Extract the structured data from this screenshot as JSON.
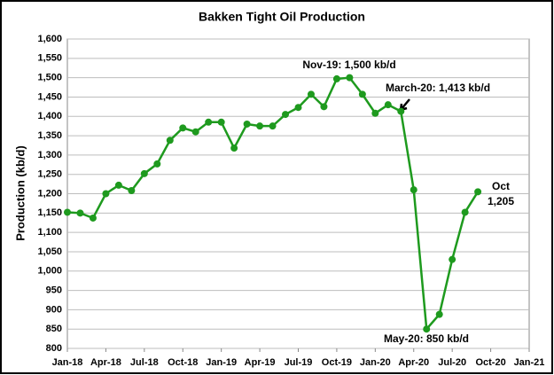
{
  "chart_data": {
    "type": "line",
    "title": "Bakken Tight Oil Production",
    "y_label": "Production (kb/d)",
    "categories": [
      "Jan-18",
      null,
      null,
      "Apr-18",
      null,
      null,
      "Jul-18",
      null,
      null,
      "Oct-18",
      null,
      null,
      "Jan-19",
      null,
      null,
      "Apr-19",
      null,
      null,
      "Jul-19",
      null,
      null,
      "Oct-19",
      null,
      null,
      "Jan-20",
      null,
      null,
      "Apr-20",
      null,
      null,
      "Jul-20",
      null,
      null,
      "Oct-20",
      null,
      null,
      "Jan-21"
    ],
    "series": [
      {
        "name": "Bakken",
        "color": "#1e9a1e",
        "values": [
          1152,
          1150,
          1137,
          1200,
          1222,
          1208,
          1252,
          1277,
          1338,
          1370,
          1360,
          1385,
          1385,
          1318,
          1380,
          1375,
          1375,
          1405,
          1423,
          1457,
          1425,
          1497,
          1500,
          1457,
          1408,
          1430,
          1413,
          1210,
          850,
          888,
          1030,
          1152,
          1205,
          null,
          null,
          null,
          null
        ]
      }
    ],
    "ylim": [
      800,
      1600
    ],
    "yticks": [
      800,
      850,
      900,
      950,
      {
        "value": 1000,
        "label": "1,000"
      },
      {
        "value": 1050,
        "label": "1,050"
      },
      {
        "value": 1100,
        "label": "1,100"
      },
      {
        "value": 1150,
        "label": "1,150"
      },
      {
        "value": 1200,
        "label": "1,200"
      },
      {
        "value": 1250,
        "label": "1,250"
      },
      {
        "value": 1300,
        "label": "1,300"
      },
      {
        "value": 1350,
        "label": "1,350"
      },
      {
        "value": 1400,
        "label": "1,400"
      },
      {
        "value": 1450,
        "label": "1,450"
      },
      {
        "value": 1500,
        "label": "1,500"
      },
      {
        "value": 1550,
        "label": "1,550"
      },
      {
        "value": 1600,
        "label": "1,600"
      }
    ],
    "grid": true,
    "annotations": [
      "Nov-19: 1,500 kb/d",
      "March-20: 1,413 kb/d",
      "May-20: 850 kb/d",
      "Oct",
      "1,205"
    ]
  }
}
